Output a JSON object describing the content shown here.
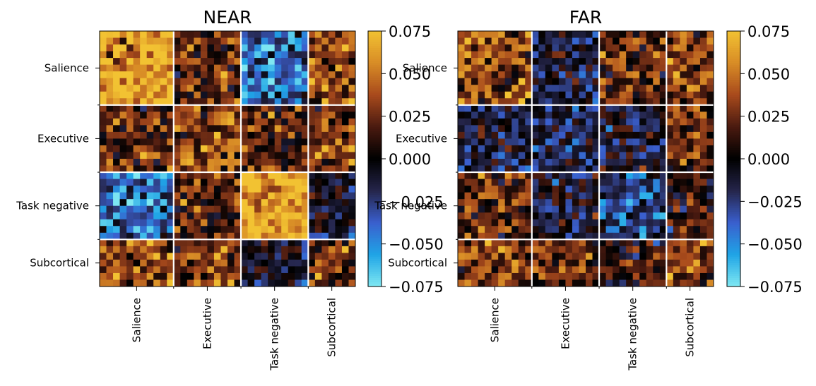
{
  "chart_data": [
    {
      "type": "heatmap",
      "title": "NEAR",
      "networks": [
        "Salience",
        "Executive",
        "Task negative",
        "Subcortical"
      ],
      "network_sizes": [
        11,
        10,
        10,
        7
      ],
      "color_range": [
        -0.075,
        0.075
      ],
      "colorbar_ticks": [
        "0.075",
        "0.050",
        "0.025",
        "0.000",
        "−0.025",
        "−0.050",
        "−0.075"
      ],
      "block_means": [
        [
          0.06,
          0.025,
          -0.04,
          0.035
        ],
        [
          0.03,
          0.035,
          0.02,
          0.03
        ],
        [
          -0.05,
          0.02,
          0.06,
          -0.01
        ],
        [
          0.03,
          0.035,
          0.01,
          0.025
        ]
      ],
      "colormap": [
        "#7fe8f2",
        "#1fa4e6",
        "#3a5fcd",
        "#25254a",
        "#000000",
        "#4a1a10",
        "#a84a1c",
        "#d88c26",
        "#f2c232"
      ]
    },
    {
      "type": "heatmap",
      "title": "FAR",
      "networks": [
        "Salience",
        "Executive",
        "Task negative",
        "Subcortical"
      ],
      "network_sizes": [
        11,
        10,
        10,
        7
      ],
      "color_range": [
        -0.075,
        0.075
      ],
      "colorbar_ticks": [
        "0.075",
        "0.050",
        "0.025",
        "0.000",
        "−0.025",
        "−0.050",
        "−0.075"
      ],
      "block_means": [
        [
          0.035,
          -0.01,
          0.025,
          0.03
        ],
        [
          0.01,
          -0.015,
          -0.01,
          0.025
        ],
        [
          0.025,
          -0.005,
          -0.025,
          0.01
        ],
        [
          0.035,
          0.0,
          0.01,
          0.03
        ]
      ],
      "colormap": [
        "#7fe8f2",
        "#1fa4e6",
        "#3a5fcd",
        "#25254a",
        "#000000",
        "#4a1a10",
        "#a84a1c",
        "#d88c26",
        "#f2c232"
      ]
    }
  ]
}
